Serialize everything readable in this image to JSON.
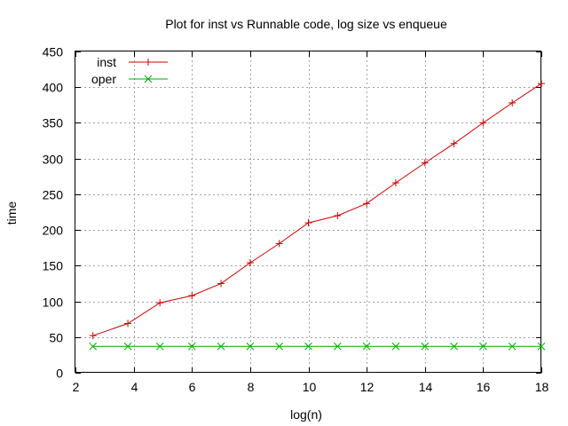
{
  "chart_data": {
    "type": "line",
    "title": "Plot for inst vs Runnable code, log size vs enqueue",
    "xlabel": "log(n)",
    "ylabel": "time",
    "xlim": [
      2,
      18
    ],
    "ylim": [
      0,
      450
    ],
    "xticks": [
      2,
      4,
      6,
      8,
      10,
      12,
      14,
      16,
      18
    ],
    "yticks": [
      0,
      50,
      100,
      150,
      200,
      250,
      300,
      350,
      400,
      450
    ],
    "grid": true,
    "legend_position": "top-left",
    "series": [
      {
        "name": "inst",
        "color": "#cc0000",
        "marker": "plus",
        "x": [
          2.6,
          3.8,
          4.9,
          6,
          7,
          8,
          9,
          10,
          11,
          12,
          13,
          14,
          15,
          16,
          17,
          18
        ],
        "y": [
          52,
          69,
          98,
          108,
          125,
          154,
          181,
          210,
          220,
          237,
          266,
          294,
          321,
          350,
          378,
          405
        ]
      },
      {
        "name": "oper",
        "color": "#00aa00",
        "marker": "cross",
        "x": [
          2.6,
          3.8,
          4.9,
          6,
          7,
          8,
          9,
          10,
          11,
          12,
          13,
          14,
          15,
          16,
          17,
          18
        ],
        "y": [
          37,
          37,
          37,
          37,
          37,
          37,
          37,
          37,
          37,
          37,
          37,
          37,
          37,
          37,
          37,
          37
        ]
      }
    ]
  }
}
